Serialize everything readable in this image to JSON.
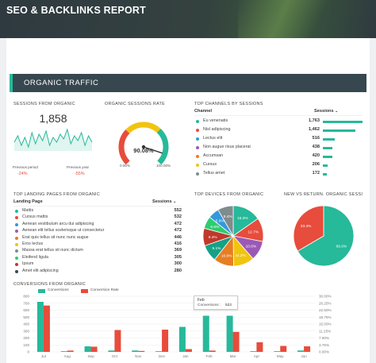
{
  "report_title": "SEO & BACKLINKS REPORT",
  "section_title": "ORGANIC TRAFFIC",
  "sessions_card": {
    "title": "SESSIONS FROM ORGANIC",
    "value": "1,858",
    "prev_period_label": "Previous period",
    "prev_period_change": "-24%",
    "prev_year_label": "Previous year",
    "prev_year_change": "-55%",
    "sparkline_color": "#26b99a",
    "sparkline": [
      5,
      9,
      3,
      8,
      2,
      11,
      4,
      10,
      6,
      12,
      3,
      8,
      5,
      10,
      7,
      13,
      4,
      9,
      6,
      11,
      3,
      9,
      5
    ]
  },
  "rate_card": {
    "title": "ORGANIC SESSIONS RATE",
    "value": "90.08%",
    "fraction": 0.9008,
    "min_label": "0.00%",
    "max_label": "100.00%"
  },
  "channels_card": {
    "title": "TOP CHANNELS BY SESSIONS",
    "col_channel": "Channel",
    "col_sessions": "Sessions",
    "rows": [
      {
        "label": "Eu venenatis",
        "value": "1,763",
        "num": 1763,
        "color": "#26b99a"
      },
      {
        "label": "Nisl adipiscing",
        "value": "1,462",
        "num": 1462,
        "color": "#e74c3c"
      },
      {
        "label": "Lectus elit",
        "value": "516",
        "num": 516,
        "color": "#3498db"
      },
      {
        "label": "Non augue risus placerat",
        "value": "438",
        "num": 438,
        "color": "#9b59b6"
      },
      {
        "label": "Accumsan",
        "value": "420",
        "num": 420,
        "color": "#e67e22"
      },
      {
        "label": "Cursus",
        "value": "206",
        "num": 206,
        "color": "#f1c40f"
      },
      {
        "label": "Tellus amet",
        "value": "172",
        "num": 172,
        "color": "#7f8c8d"
      }
    ]
  },
  "landing_card": {
    "title": "TOP LANDING PAGES FROM ORGANIC",
    "col_page": "Landing Page",
    "col_sessions": "Sessions",
    "rows": [
      {
        "label": "Mattis",
        "value": "552",
        "color": "#26b99a"
      },
      {
        "label": "Cursus mattis",
        "value": "532",
        "color": "#e74c3c"
      },
      {
        "label": "Aenean vestibulum arcu dui adipiscing",
        "value": "472",
        "color": "#3498db"
      },
      {
        "label": "Aenean elit tellus scelerisque ut consectetur",
        "value": "472",
        "color": "#9b59b6"
      },
      {
        "label": "Erat quis tellus sit nunc nunc augue",
        "value": "446",
        "color": "#e67e22"
      },
      {
        "label": "Eros lectus",
        "value": "416",
        "color": "#f1c40f"
      },
      {
        "label": "Massa erat tellus sit nunc dictum",
        "value": "369",
        "color": "#7f8c8d"
      },
      {
        "label": "Eleifend ligula",
        "value": "305",
        "color": "#2ecc71"
      },
      {
        "label": "Ipsum",
        "value": "300",
        "color": "#c0392b"
      },
      {
        "label": "Amet elit adipiscing",
        "value": "280",
        "color": "#34495e"
      }
    ]
  },
  "devices_card": {
    "title": "TOP DEVICES FROM ORGANIC",
    "slices": [
      {
        "label": "15.3%",
        "value": 15.3,
        "color": "#26b99a"
      },
      {
        "label": "12.7%",
        "value": 12.7,
        "color": "#e74c3c"
      },
      {
        "label": "10.6%",
        "value": 10.6,
        "color": "#9b59b6"
      },
      {
        "label": "11.2%",
        "value": 11.2,
        "color": "#f1c40f"
      },
      {
        "label": "10.8%",
        "value": 10.8,
        "color": "#e67e22"
      },
      {
        "label": "9.1%",
        "value": 9.1,
        "color": "#16a085"
      },
      {
        "label": "9.4%",
        "value": 9.4,
        "color": "#c0392b"
      },
      {
        "label": "6.6%",
        "value": 6.6,
        "color": "#2ecc71"
      },
      {
        "label": "5.9%",
        "value": 5.9,
        "color": "#3498db"
      },
      {
        "label": "8.4%",
        "value": 8.4,
        "color": "#7f8c8d"
      }
    ]
  },
  "new_return_card": {
    "title": "NEW VS RETURN. ORGANIC SESSI",
    "slices": [
      {
        "label": "66.6%",
        "value": 66.6,
        "color": "#26b99a"
      },
      {
        "label": "33.4%",
        "value": 33.4,
        "color": "#e74c3c"
      }
    ]
  },
  "conversions_card": {
    "title": "CONVERSIONS FROM ORGANIC",
    "legend_conversions": "Conversions",
    "legend_rate": "Conversion Rate",
    "tooltip_month": "Feb",
    "tooltip_label": "Conversions :",
    "tooltip_value": "522"
  },
  "chart_data": {
    "type": "bar",
    "categories": [
      "Jul",
      "Aug",
      "Sep",
      "Oct",
      "Nov",
      "Dec",
      "Jan",
      "Feb",
      "Mar",
      "Apr",
      "May",
      "Jun"
    ],
    "series": [
      {
        "name": "Conversions",
        "axis": "left",
        "color": "#26b99a",
        "values": [
          720,
          10,
          80,
          20,
          20,
          10,
          360,
          520,
          520,
          10,
          10,
          20
        ]
      },
      {
        "name": "Conversion Rate",
        "axis": "right",
        "color": "#e74c3c",
        "values": [
          25.0,
          0.7,
          2.8,
          11.8,
          0.5,
          12.0,
          1.5,
          0.7,
          10.8,
          5.2,
          3.2,
          3.0
        ]
      }
    ],
    "ylim_left": [
      0,
      800
    ],
    "yticks_left": [
      "0",
      "100",
      "200",
      "300",
      "400",
      "500",
      "600",
      "700",
      "800"
    ],
    "ylim_right": [
      0,
      30
    ],
    "yticks_right": [
      "0.00%",
      "3.75%",
      "7.50%",
      "11.25%",
      "15.00%",
      "18.75%",
      "22.50%",
      "26.25%",
      "30.00%"
    ],
    "grid": true,
    "legend": "top-left"
  }
}
